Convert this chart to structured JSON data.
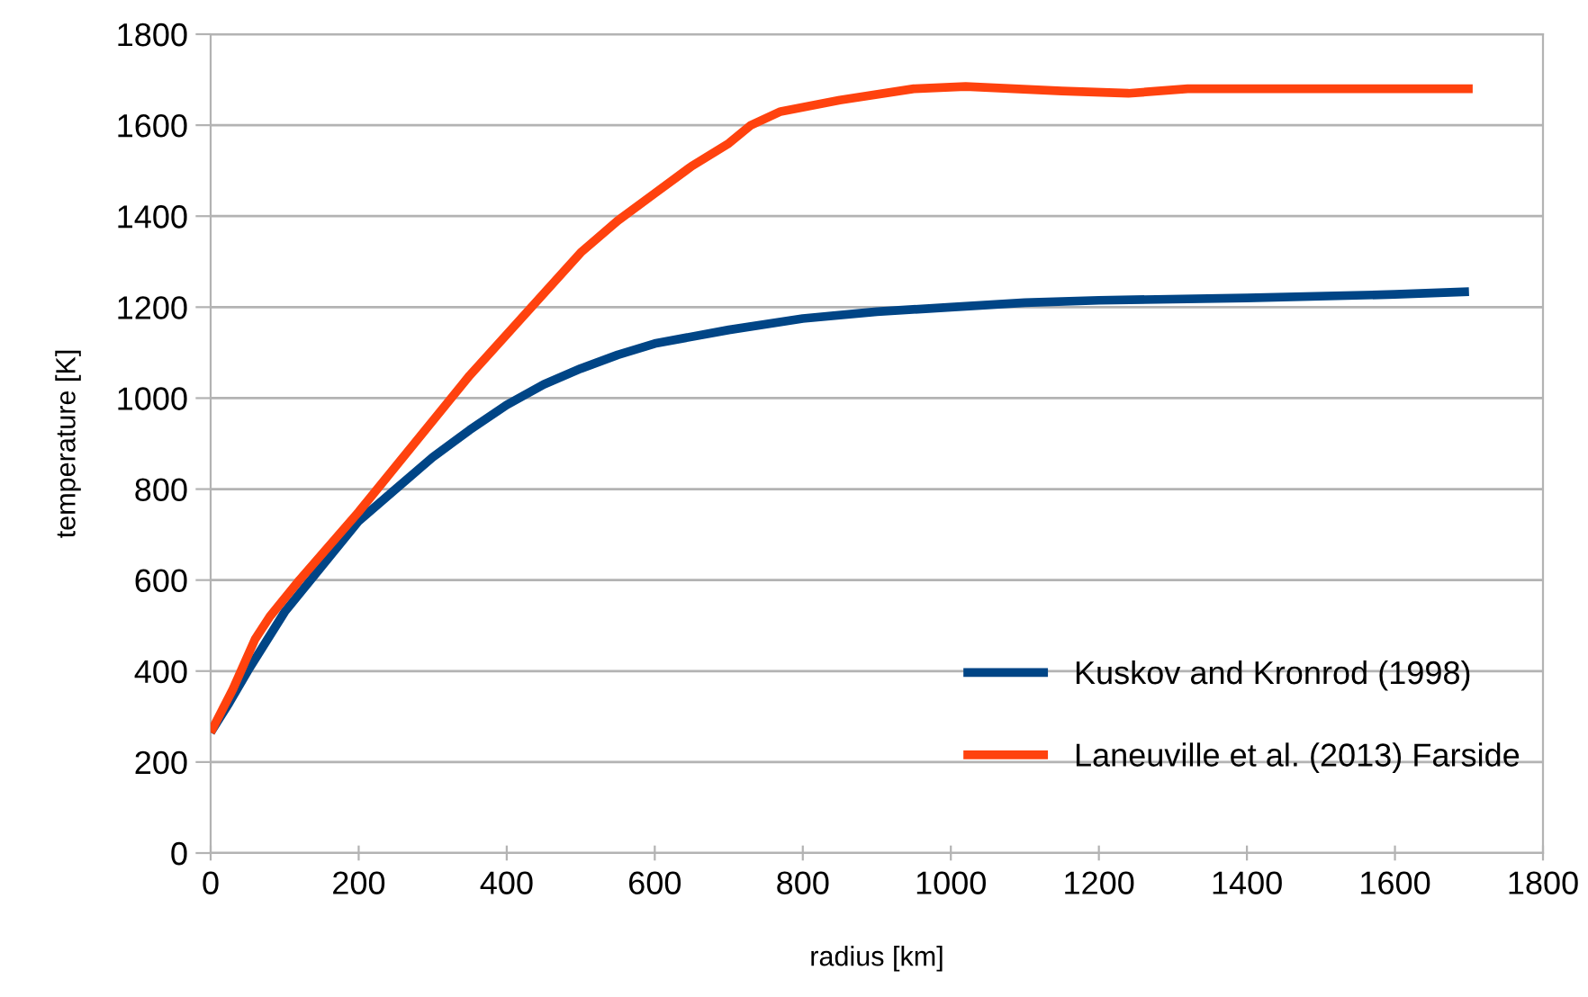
{
  "chart_data": {
    "type": "line",
    "xlabel": "radius [km]",
    "ylabel": "temperature [K]",
    "xlim": [
      0,
      1800
    ],
    "xticks": [
      0,
      200,
      400,
      600,
      800,
      1000,
      1200,
      1400,
      1600,
      1800
    ],
    "ylim": [
      0,
      1800
    ],
    "yticks": [
      0,
      200,
      400,
      600,
      800,
      1000,
      1200,
      1400,
      1600,
      1800
    ],
    "grid": "y",
    "legend": "lower right",
    "marker": "none",
    "line_style": "solid",
    "series": [
      {
        "name": "Kuskov and Kronrod (1998)",
        "color": "#004586",
        "x": [
          0,
          25,
          50,
          75,
          100,
          150,
          200,
          250,
          300,
          350,
          400,
          450,
          500,
          550,
          600,
          700,
          800,
          900,
          1000,
          1100,
          1200,
          1400,
          1600,
          1700
        ],
        "values": [
          265,
          330,
          400,
          465,
          530,
          630,
          730,
          800,
          870,
          930,
          985,
          1030,
          1065,
          1095,
          1120,
          1150,
          1175,
          1190,
          1200,
          1210,
          1215,
          1220,
          1228,
          1234
        ]
      },
      {
        "name": "Laneuville et al. (2013) Farside",
        "color": "#ff420e",
        "x": [
          0,
          30,
          60,
          80,
          120,
          200,
          300,
          350,
          400,
          450,
          500,
          550,
          600,
          650,
          700,
          730,
          770,
          850,
          950,
          1020,
          1150,
          1240,
          1320,
          1400,
          1705
        ],
        "values": [
          265,
          360,
          470,
          520,
          600,
          750,
          950,
          1050,
          1140,
          1230,
          1320,
          1390,
          1450,
          1510,
          1560,
          1600,
          1630,
          1655,
          1680,
          1685,
          1675,
          1670,
          1680,
          1680,
          1680
        ]
      }
    ]
  }
}
